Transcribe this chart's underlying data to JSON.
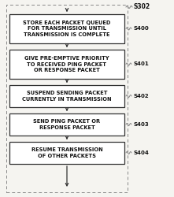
{
  "bg_color": "#f5f4f0",
  "box_facecolor": "#ffffff",
  "box_edgecolor": "#333333",
  "text_color": "#111111",
  "arrow_color": "#333333",
  "dashed_rect_color": "#888888",
  "wavy_color": "#888888",
  "steps": [
    {
      "label": "STORE EACH PACKET QUEUED\nFOR TRANSMISSION UNTIL\nTRANSMISSION IS COMPLETE",
      "step_id": "S400",
      "nlines": 3
    },
    {
      "label": "GIVE PRE-EMPTIVE PRIORITY\nTO RECEIVED PING PACKET\nOR RESPONSE PACKET",
      "step_id": "S401",
      "nlines": 3
    },
    {
      "label": "SUSPEND SENDING PACKET\nCURRENTLY IN TRANSMISSION",
      "step_id": "S402",
      "nlines": 2
    },
    {
      "label": "SEND PING PACKET OR\nRESPONSE PACKET",
      "step_id": "S403",
      "nlines": 2
    },
    {
      "label": "RESUME TRANSMISSION\nOF OTHER PACKETS",
      "step_id": "S404",
      "nlines": 2
    }
  ],
  "s302_label": "S302",
  "figsize": [
    2.21,
    2.5
  ],
  "dpi": 100
}
